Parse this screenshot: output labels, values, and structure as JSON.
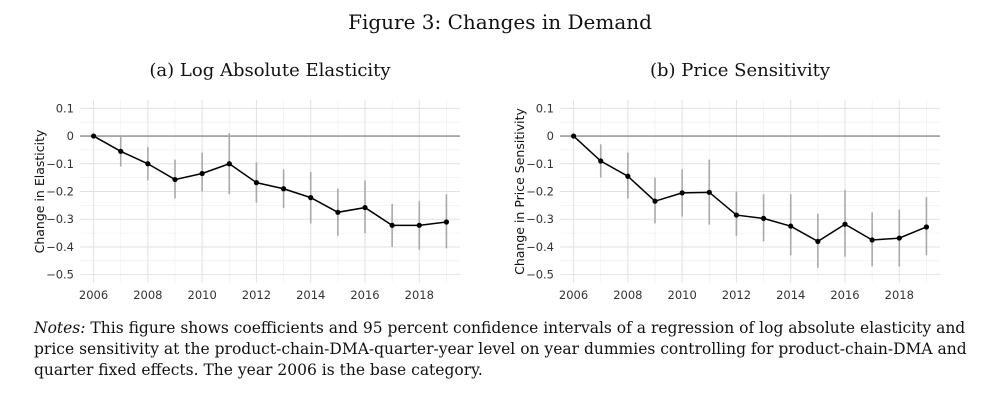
{
  "figure_title": "Figure 3: Changes in Demand",
  "notes": {
    "label": "Notes:",
    "text": "This figure shows coefficients and 95 percent confidence intervals of a regression of log absolute elasticity and price sensitivity at the product-chain-DMA-quarter-year level on year dummies controlling for product-chain-DMA and quarter fixed effects. The year 2006 is the base category."
  },
  "chart_data": [
    {
      "type": "line",
      "title": "(a) Log Absolute Elasticity",
      "xlabel": "",
      "ylabel": "Change in Elasticity",
      "x": [
        2006,
        2007,
        2008,
        2009,
        2010,
        2011,
        2012,
        2013,
        2014,
        2015,
        2016,
        2017,
        2018,
        2019
      ],
      "values": [
        0,
        -0.055,
        -0.1,
        -0.157,
        -0.135,
        -0.1,
        -0.168,
        -0.19,
        -0.222,
        -0.275,
        -0.258,
        -0.322,
        -0.322,
        -0.31
      ],
      "ci_low": [
        0,
        -0.11,
        -0.16,
        -0.225,
        -0.2,
        -0.21,
        -0.24,
        -0.26,
        -0.315,
        -0.36,
        -0.35,
        -0.4,
        -0.41,
        -0.405
      ],
      "ci_high": [
        0,
        0,
        -0.04,
        -0.085,
        -0.06,
        0.01,
        -0.095,
        -0.12,
        -0.13,
        -0.19,
        -0.16,
        -0.245,
        -0.235,
        -0.21
      ],
      "xlim": [
        2005.5,
        2019.5
      ],
      "ylim": [
        -0.53,
        0.13
      ],
      "xticks": [
        2006,
        2008,
        2010,
        2012,
        2014,
        2016,
        2018
      ],
      "yticks": [
        0.1,
        0,
        -0.1,
        -0.2,
        -0.3,
        -0.4,
        -0.5
      ],
      "ytick_labels": [
        "0.1",
        "0",
        "−0.1",
        "−0.2",
        "−0.3",
        "−0.4",
        "−0.5"
      ],
      "xtick_labels": [
        "2006",
        "2008",
        "2010",
        "2012",
        "2014",
        "2016",
        "2018"
      ],
      "zero_line": 0,
      "grid": true
    },
    {
      "type": "line",
      "title": "(b) Price Sensitivity",
      "xlabel": "",
      "ylabel": "Change in Price Sensitivity",
      "x": [
        2006,
        2007,
        2008,
        2009,
        2010,
        2011,
        2012,
        2013,
        2014,
        2015,
        2016,
        2017,
        2018,
        2019
      ],
      "values": [
        0,
        -0.09,
        -0.145,
        -0.235,
        -0.205,
        -0.203,
        -0.285,
        -0.297,
        -0.325,
        -0.38,
        -0.318,
        -0.375,
        -0.368,
        -0.328
      ],
      "ci_low": [
        0,
        -0.15,
        -0.225,
        -0.315,
        -0.29,
        -0.32,
        -0.36,
        -0.38,
        -0.43,
        -0.475,
        -0.435,
        -0.47,
        -0.47,
        -0.43
      ],
      "ci_high": [
        0,
        -0.03,
        -0.06,
        -0.15,
        -0.12,
        -0.085,
        -0.2,
        -0.21,
        -0.21,
        -0.28,
        -0.195,
        -0.275,
        -0.265,
        -0.22
      ],
      "xlim": [
        2005.5,
        2019.5
      ],
      "ylim": [
        -0.53,
        0.13
      ],
      "xticks": [
        2006,
        2008,
        2010,
        2012,
        2014,
        2016,
        2018
      ],
      "yticks": [
        0.1,
        0,
        -0.1,
        -0.2,
        -0.3,
        -0.4,
        -0.5
      ],
      "ytick_labels": [
        "0.1",
        "0",
        "−0.1",
        "−0.2",
        "−0.3",
        "−0.4",
        "−0.5"
      ],
      "xtick_labels": [
        "2006",
        "2008",
        "2010",
        "2012",
        "2014",
        "2016",
        "2018"
      ],
      "zero_line": 0,
      "grid": true
    }
  ]
}
